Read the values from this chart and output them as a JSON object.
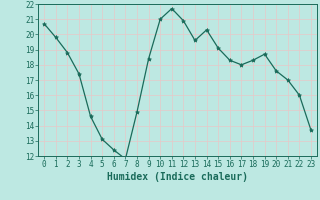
{
  "title": "",
  "xlabel": "Humidex (Indice chaleur)",
  "x": [
    0,
    1,
    2,
    3,
    4,
    5,
    6,
    7,
    8,
    9,
    10,
    11,
    12,
    13,
    14,
    15,
    16,
    17,
    18,
    19,
    20,
    21,
    22,
    23
  ],
  "y": [
    20.7,
    19.8,
    18.8,
    17.4,
    14.6,
    13.1,
    12.4,
    11.8,
    14.9,
    18.4,
    21.0,
    21.7,
    20.9,
    19.6,
    20.3,
    19.1,
    18.3,
    18.0,
    18.3,
    18.7,
    17.6,
    17.0,
    16.0,
    13.7
  ],
  "line_color": "#1a6b5a",
  "marker": "*",
  "marker_size": 3,
  "bg_color": "#bde8e2",
  "grid_color": "#e8c8c8",
  "ylim": [
    12,
    22
  ],
  "xlim": [
    -0.5,
    23.5
  ],
  "yticks": [
    12,
    13,
    14,
    15,
    16,
    17,
    18,
    19,
    20,
    21,
    22
  ],
  "xticks": [
    0,
    1,
    2,
    3,
    4,
    5,
    6,
    7,
    8,
    9,
    10,
    11,
    12,
    13,
    14,
    15,
    16,
    17,
    18,
    19,
    20,
    21,
    22,
    23
  ],
  "tick_label_fontsize": 5.5,
  "xlabel_fontsize": 7,
  "tick_color": "#1a6b5a",
  "xlabel_color": "#1a6b5a",
  "spine_color": "#1a6b5a",
  "bottom_bar_color": "#1a6b5a"
}
